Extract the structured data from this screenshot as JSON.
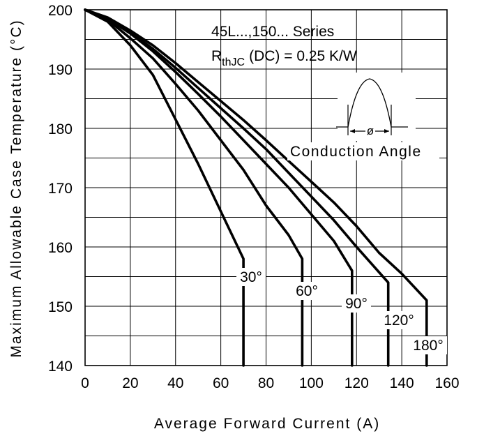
{
  "chart_data": {
    "type": "line",
    "title": "",
    "xlabel": "Average Forward Current (A)",
    "ylabel": "Maximum Allowable Case Temperature (°C)",
    "xlim": [
      0,
      160
    ],
    "ylim": [
      140,
      200
    ],
    "xticks": [
      0,
      20,
      40,
      60,
      80,
      100,
      120,
      140,
      160
    ],
    "yticks": [
      140,
      150,
      160,
      170,
      180,
      190,
      200
    ],
    "x_tick_labels": [
      "0",
      "20",
      "40",
      "60",
      "80",
      "100",
      "120",
      "140",
      "160"
    ],
    "y_tick_labels": [
      "140",
      "150",
      "160",
      "170",
      "180",
      "190",
      "200"
    ],
    "grid": true,
    "annotations": {
      "series_line": "45L...,150... Series",
      "rthjc_main": "R",
      "rthjc_sub": "thJC",
      "rthjc_rest": "(DC) = 0.25 K/W",
      "conduction_label": "Conduction Angle",
      "phi_symbol": "ø"
    },
    "series": [
      {
        "label": "30°",
        "points": [
          [
            0,
            200
          ],
          [
            10,
            198
          ],
          [
            20,
            194
          ],
          [
            30,
            189
          ],
          [
            40,
            181.5
          ],
          [
            50,
            174
          ],
          [
            60,
            166
          ],
          [
            70,
            158
          ],
          [
            70,
            140
          ]
        ]
      },
      {
        "label": "60°",
        "points": [
          [
            0,
            200
          ],
          [
            10,
            198.3
          ],
          [
            20,
            195.2
          ],
          [
            30,
            191.8
          ],
          [
            40,
            187.5
          ],
          [
            50,
            183
          ],
          [
            60,
            178
          ],
          [
            70,
            173
          ],
          [
            80,
            167
          ],
          [
            90,
            162
          ],
          [
            96,
            158
          ],
          [
            96,
            140
          ]
        ]
      },
      {
        "label": "90°",
        "points": [
          [
            0,
            200
          ],
          [
            10,
            198.5
          ],
          [
            20,
            196
          ],
          [
            30,
            193
          ],
          [
            40,
            189.5
          ],
          [
            50,
            185.8
          ],
          [
            60,
            182
          ],
          [
            70,
            178
          ],
          [
            80,
            174
          ],
          [
            90,
            170
          ],
          [
            100,
            165.5
          ],
          [
            110,
            161
          ],
          [
            118,
            156
          ],
          [
            118,
            140
          ]
        ]
      },
      {
        "label": "120°",
        "points": [
          [
            0,
            200
          ],
          [
            10,
            198.6
          ],
          [
            20,
            196.2
          ],
          [
            30,
            193.4
          ],
          [
            40,
            190.2
          ],
          [
            50,
            186.8
          ],
          [
            60,
            183.4
          ],
          [
            70,
            180
          ],
          [
            80,
            176.5
          ],
          [
            90,
            172.5
          ],
          [
            100,
            168.5
          ],
          [
            110,
            164.5
          ],
          [
            120,
            160
          ],
          [
            134,
            154
          ],
          [
            134,
            140
          ]
        ]
      },
      {
        "label": "180°",
        "points": [
          [
            0,
            200
          ],
          [
            10,
            198.7
          ],
          [
            20,
            196.5
          ],
          [
            30,
            194
          ],
          [
            40,
            191
          ],
          [
            50,
            187.8
          ],
          [
            60,
            184.6
          ],
          [
            70,
            181.4
          ],
          [
            80,
            178
          ],
          [
            90,
            174.5
          ],
          [
            100,
            171
          ],
          [
            110,
            167.5
          ],
          [
            120,
            163.5
          ],
          [
            130,
            159
          ],
          [
            140,
            155.5
          ],
          [
            151,
            151
          ],
          [
            151,
            140
          ]
        ]
      }
    ]
  }
}
